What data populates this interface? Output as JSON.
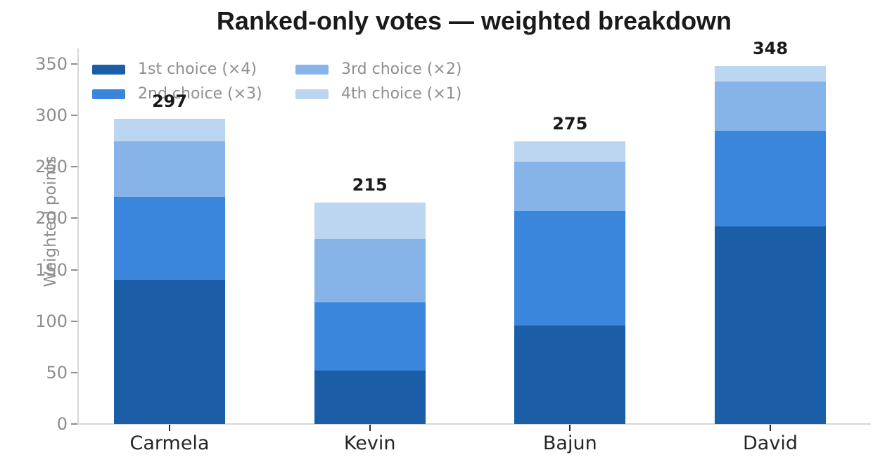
{
  "title": "Ranked-only votes — weighted breakdown",
  "chart_data": {
    "type": "bar",
    "stacked": true,
    "title": "Ranked-only votes — weighted breakdown",
    "ylabel": "Weighted points",
    "xlabel": "",
    "categories": [
      "Carmela",
      "Kevin",
      "Bajun",
      "David"
    ],
    "series": [
      {
        "name": "1st choice (×4)",
        "color": "#1b5ea7",
        "values": [
          140,
          52,
          96,
          192
        ]
      },
      {
        "name": "2nd choice (×3)",
        "color": "#3b86dd",
        "values": [
          81,
          66,
          111,
          93
        ]
      },
      {
        "name": "3rd choice (×2)",
        "color": "#87b4e8",
        "values": [
          54,
          62,
          48,
          48
        ]
      },
      {
        "name": "4th choice (×1)",
        "color": "#bcd6f2",
        "values": [
          22,
          35,
          20,
          15
        ]
      }
    ],
    "totals": [
      297,
      215,
      275,
      348
    ],
    "ylim": [
      0,
      350
    ],
    "yticks": [
      0,
      50,
      100,
      150,
      200,
      250,
      300,
      350
    ],
    "grid": false,
    "legend_position": "upper-left"
  },
  "colors": {
    "axis_line": "#d7d7d7",
    "y_tick_text": "#8c8c8c",
    "x_tick_text": "#262626",
    "legend_text": "#8f8f8f",
    "title_text": "#1a1a1a",
    "background": "#ffffff"
  }
}
